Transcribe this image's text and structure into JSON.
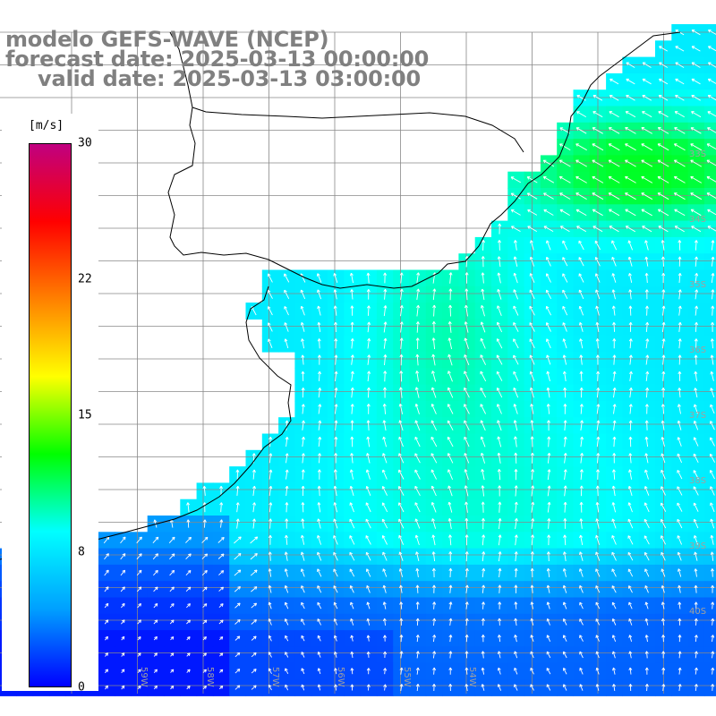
{
  "title": {
    "line1": "modelo GEFS-WAVE (NCEP)",
    "line2": "forecast date: 2025-03-13 00:00:00",
    "line3": "valid date: 2025-03-13 03:00:00"
  },
  "colorbar": {
    "unit": "[m/s]",
    "ticks": [
      "30",
      "22",
      "15",
      "8",
      "0"
    ],
    "tick_values": [
      30,
      22,
      15,
      8,
      0
    ],
    "min": 0,
    "max": 30,
    "colors": [
      "#0000ff",
      "#00a0ff",
      "#00ffff",
      "#00ff00",
      "#ffff00",
      "#ff8000",
      "#ff0000",
      "#c00080"
    ]
  },
  "lat_labels": [
    "33S",
    "34S",
    "35S",
    "36S",
    "37S",
    "38S",
    "39S",
    "40S"
  ],
  "lon_labels": [
    "59W",
    "58W",
    "57W",
    "56W",
    "55W",
    "54W"
  ],
  "colors": {
    "land": "#ffffff",
    "grid": "#888888",
    "coast": "#000000",
    "arrow": "#ffffff"
  }
}
